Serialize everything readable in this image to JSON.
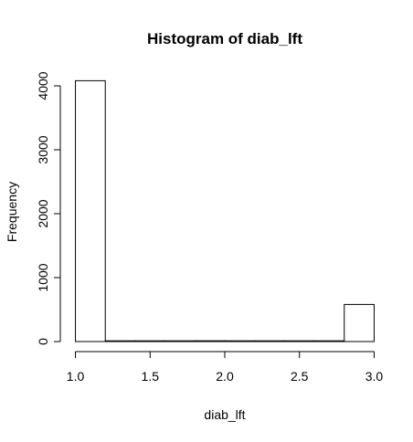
{
  "chart_data": {
    "type": "bar",
    "title": "Histogram of diab_lft",
    "xlabel": "diab_lft",
    "ylabel": "Frequency",
    "bins": [
      {
        "start": 1.0,
        "end": 1.2,
        "count": 4080
      },
      {
        "start": 1.2,
        "end": 1.4,
        "count": 0
      },
      {
        "start": 1.4,
        "end": 1.6,
        "count": 0
      },
      {
        "start": 1.6,
        "end": 1.8,
        "count": 0
      },
      {
        "start": 1.8,
        "end": 2.0,
        "count": 12
      },
      {
        "start": 2.0,
        "end": 2.2,
        "count": 0
      },
      {
        "start": 2.2,
        "end": 2.4,
        "count": 0
      },
      {
        "start": 2.4,
        "end": 2.6,
        "count": 0
      },
      {
        "start": 2.6,
        "end": 2.8,
        "count": 0
      },
      {
        "start": 2.8,
        "end": 3.0,
        "count": 580
      }
    ],
    "xticks": [
      1.0,
      1.5,
      2.0,
      2.5,
      3.0
    ],
    "xtick_labels": [
      "1.0",
      "1.5",
      "2.0",
      "2.5",
      "3.0"
    ],
    "yticks": [
      0,
      1000,
      2000,
      3000,
      4000
    ],
    "ytick_labels": [
      "0",
      "1000",
      "2000",
      "3000",
      "4000"
    ],
    "xlim": [
      0.96,
      3.04
    ],
    "ylim": [
      0,
      4200
    ]
  }
}
